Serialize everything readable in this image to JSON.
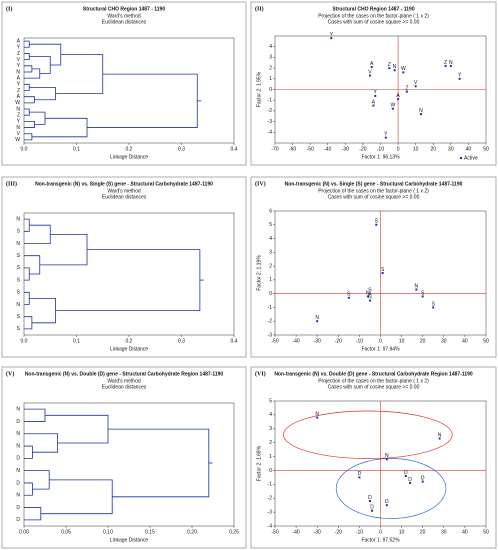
{
  "chart_data": [
    {
      "type": "dendrogram",
      "panel": "(I)",
      "title": "Structural CHO Region 1487 - 1190",
      "subtitle": [
        "Ward's method",
        "Euclidean distances"
      ],
      "xlabel": "Linkage Distance",
      "xlim": [
        0,
        0.4
      ],
      "xticks": [
        {
          "value": 0,
          "label": "0.0"
        },
        0.1,
        0.2,
        0.3,
        0.4
      ],
      "color": "#1f2fa8",
      "tree": {
        "height": 0.33,
        "children": [
          {
            "height": 0.15,
            "children": [
              {
                "height": 0.07,
                "children": [
                  {
                    "height": 0.01,
                    "children": [
                      "A",
                      "Y"
                    ]
                  },
                  {
                    "height": 0.05,
                    "children": [
                      {
                        "height": 0.01,
                        "children": [
                          "Z",
                          "V"
                        ]
                      },
                      {
                        "height": 0.03,
                        "children": [
                          {
                            "height": 0.015,
                            "children": [
                              "Y",
                              "N"
                            ]
                          },
                          "A"
                        ]
                      }
                    ]
                  }
                ]
              },
              {
                "height": 0.06,
                "children": [
                  {
                    "height": 0.01,
                    "children": [
                      "Y",
                      "Z"
                    ]
                  },
                  {
                    "height": 0.02,
                    "children": [
                      "A",
                      "W"
                    ]
                  }
                ]
              }
            ]
          },
          {
            "height": 0.12,
            "children": [
              {
                "height": 0.04,
                "children": [
                  {
                    "height": 0.01,
                    "children": [
                      "N",
                      "Z"
                    ]
                  },
                  {
                    "height": 0.02,
                    "children": [
                      "Y",
                      "N"
                    ]
                  }
                ]
              },
              {
                "height": 0.015,
                "children": [
                  "V",
                  "W"
                ]
              }
            ]
          }
        ]
      }
    },
    {
      "type": "scatter",
      "panel": "(II)",
      "title": "Structural CHO Region 1487 - 1190",
      "subtitle": [
        "Projection of the cases on the factor-plane ( 1 x 2)",
        "Cases with sum of cosine square >= 0.00"
      ],
      "xlabel": "Factor 1: 96.13%",
      "ylabel": "Factor 2: 1.95%",
      "legend": "Active",
      "xlim": [
        -70,
        50
      ],
      "xticks": [
        -70,
        -60,
        -50,
        -40,
        -30,
        -20,
        -10,
        0,
        10,
        20,
        30,
        40,
        50
      ],
      "ylim": [
        -5,
        5
      ],
      "yticks": [
        -4,
        -3,
        -2,
        -1,
        0,
        1,
        2,
        3,
        4
      ],
      "color": "#1f2fa8",
      "labels": [
        "Y",
        "A",
        "V",
        "Z",
        "N",
        "Y",
        "A",
        "W",
        "V",
        "Z",
        "N",
        "Y",
        "A",
        "W",
        "Z",
        "N",
        "Y"
      ],
      "x": [
        -38,
        -15,
        -16,
        -5,
        -2,
        -13,
        -14,
        3,
        10,
        27,
        30,
        35,
        0,
        -3,
        5,
        13,
        -7
      ],
      "values": [
        4.8,
        2.1,
        1.3,
        2.0,
        1.8,
        -0.6,
        -1.5,
        1.6,
        0.3,
        2.2,
        2.2,
        1.0,
        -0.9,
        -1.8,
        -0.2,
        -2.3,
        -4.5
      ]
    },
    {
      "type": "dendrogram",
      "panel": "(III)",
      "title": "Non-transgenic (N) vs. Single (S) gene - Structural Carbohydrate 1487-1190",
      "subtitle": [
        "Ward's method",
        "Euclidean distances"
      ],
      "xlabel": "Linkage Distance",
      "xlim": [
        0,
        0.4
      ],
      "xticks": [
        {
          "value": 0,
          "label": "0.0"
        },
        0.1,
        0.2,
        0.3,
        0.4
      ],
      "color": "#1f2fa8",
      "tree": {
        "height": 0.335,
        "children": [
          {
            "height": 0.12,
            "children": [
              {
                "height": 0.05,
                "children": [
                  {
                    "height": 0.01,
                    "children": [
                      "N",
                      "S"
                    ]
                  },
                  "N"
                ]
              },
              {
                "height": 0.03,
                "children": [
                  "S",
                  {
                    "height": 0.01,
                    "children": [
                      "S",
                      "S"
                    ]
                  }
                ]
              }
            ]
          },
          {
            "height": 0.06,
            "children": [
              {
                "height": 0.01,
                "children": [
                  "S",
                  "N"
                ]
              },
              {
                "height": 0.015,
                "children": [
                  "S",
                  "S"
                ]
              }
            ]
          }
        ]
      }
    },
    {
      "type": "scatter",
      "panel": "(IV)",
      "title": "Non-transgenic (N) vs. Single (S) gene - Structural Carbohydrate 1487-1190",
      "subtitle": [
        "Projection of the cases on the factor-plane ( 1 x 2)",
        "Cases with sum of cosine square >= 0.00"
      ],
      "xlabel": "Factor 1: 97.94%",
      "ylabel": "Factor 2: 1.19%",
      "xlim": [
        -50,
        50
      ],
      "xticks": [
        -50,
        -40,
        -30,
        -20,
        -10,
        0,
        10,
        20,
        30,
        40,
        50
      ],
      "ylim": [
        -3,
        6
      ],
      "yticks": [
        -3,
        -2,
        -1,
        0,
        1,
        2,
        3,
        4,
        5,
        6
      ],
      "color": "#1f2fa8",
      "labels": [
        "S",
        "S",
        "N",
        "S",
        "N",
        "S",
        "N",
        "S",
        "S",
        "N"
      ],
      "x": [
        -2,
        1,
        -30,
        -15,
        -6,
        -5,
        17,
        20,
        25,
        -5
      ],
      "values": [
        5.0,
        1.5,
        -2.0,
        -0.3,
        -0.2,
        0.0,
        0.3,
        -0.2,
        -1.0,
        -0.5
      ]
    },
    {
      "type": "dendrogram",
      "panel": "(V)",
      "title": "Non-transgenic (N) vs. Double (D) gene - Structural Carbohydrate Region 1487-1190",
      "subtitle": [
        "Ward's method",
        "Euclidean distances"
      ],
      "xlabel": "Linkage Distance",
      "xlim": [
        0,
        0.25
      ],
      "xticks": [
        {
          "value": 0,
          "label": "0.00"
        },
        {
          "value": 0.05,
          "label": "0.05"
        },
        {
          "value": 0.1,
          "label": "0.10"
        },
        {
          "value": 0.15,
          "label": "0.15"
        },
        {
          "value": 0.2,
          "label": "0.20"
        },
        {
          "value": 0.25,
          "label": "0.25"
        }
      ],
      "color": "#1f2fa8",
      "tree": {
        "height": 0.22,
        "children": [
          {
            "height": 0.1,
            "children": [
              {
                "height": 0.025,
                "children": [
                  "N",
                  "D"
                ]
              },
              {
                "height": 0.04,
                "children": [
                  "N",
                  {
                    "height": 0.01,
                    "children": [
                      "N",
                      "D"
                    ]
                  }
                ]
              }
            ]
          },
          {
            "height": 0.105,
            "children": [
              {
                "height": 0.03,
                "children": [
                  "N",
                  {
                    "height": 0.01,
                    "children": [
                      "D",
                      "N"
                    ]
                  }
                ]
              },
              {
                "height": 0.02,
                "children": [
                  "D",
                  "D"
                ]
              }
            ]
          }
        ]
      }
    },
    {
      "type": "scatter",
      "panel": "(VI)",
      "title": "Non-transgenic (N) vs. Double (D) gene - Structural Carbohydrate Region 1487-1190",
      "subtitle": [
        "Projection of the cases on the factor-plane ( 1 x 2)",
        "Cases with sum of cosine square >= 0.00"
      ],
      "xlabel": "Factor 1: 97.52%",
      "ylabel": "Factor 2: 1.68%",
      "xlim": [
        -50,
        50
      ],
      "xticks": [
        -50,
        -40,
        -30,
        -20,
        -10,
        0,
        10,
        20,
        30,
        40,
        50
      ],
      "ylim": [
        -4,
        5
      ],
      "yticks": [
        -4,
        -3,
        -2,
        -1,
        0,
        1,
        2,
        3,
        4,
        5
      ],
      "color": "#1f2fa8",
      "labels": [
        "N",
        "N",
        "N",
        "D",
        "D",
        "D",
        "D",
        "D",
        "D",
        "D"
      ],
      "x": [
        -30,
        28,
        3,
        -10,
        12,
        20,
        -5,
        -4,
        3,
        14
      ],
      "values": [
        3.8,
        2.3,
        0.8,
        -0.5,
        -0.4,
        -0.8,
        -2.2,
        -2.9,
        -2.5,
        -0.9
      ]
    }
  ]
}
